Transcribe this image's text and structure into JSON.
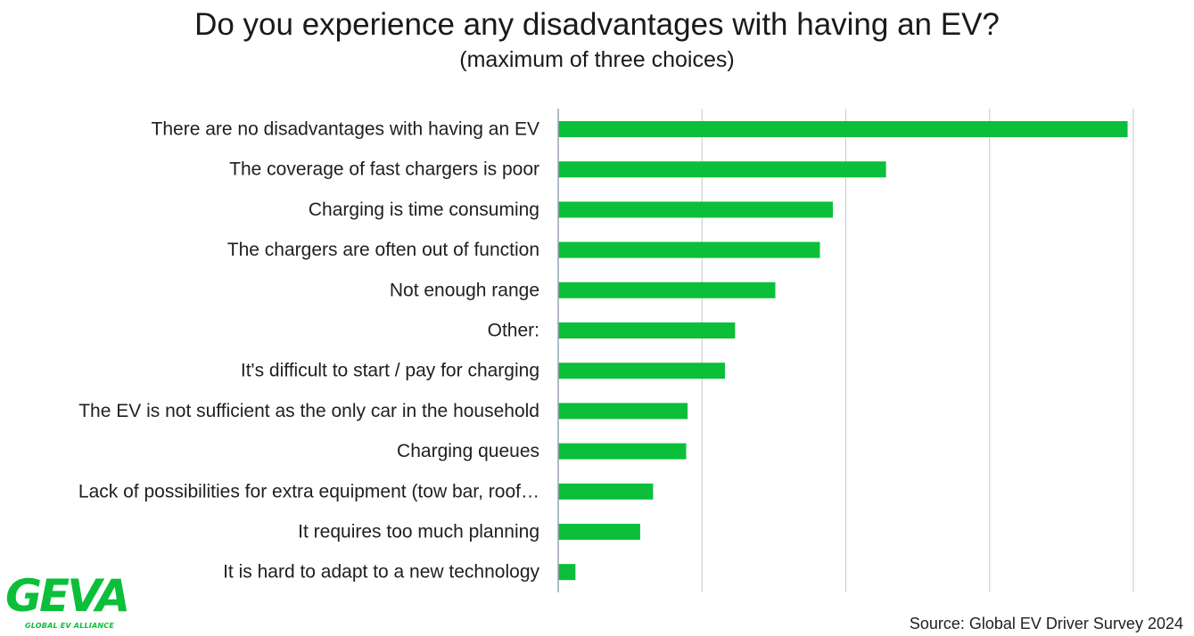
{
  "header": {
    "title": "Do you experience any disadvantages with having an EV?",
    "subtitle": "(maximum of three choices)"
  },
  "footer": {
    "source": "Source: Global EV Driver Survey 2024"
  },
  "logo": {
    "wordmark": "GEVA",
    "tagline": "GLOBAL EV ALLIANCE",
    "color": "#0bbf3a"
  },
  "chart_data": {
    "type": "bar",
    "orientation": "horizontal",
    "categories": [
      "There are no disadvantages with having an EV",
      "The coverage of fast chargers is poor",
      "Charging is time consuming",
      "The chargers are often out of function",
      "Not enough range",
      "Other:",
      "It's difficult to start / pay for charging",
      "The EV is not sufficient as the only car in the household",
      "Charging queues",
      "Lack of possibilities for extra equipment (tow bar, roof…",
      "It requires too much planning",
      "It is hard to adapt to a new technology"
    ],
    "values": [
      39.6,
      22.8,
      19.1,
      18.2,
      15.1,
      12.3,
      11.6,
      9.0,
      8.9,
      6.6,
      5.7,
      1.2
    ],
    "xlim": [
      0,
      40
    ],
    "gridlines": [
      0,
      10,
      20,
      30,
      40
    ],
    "tick_labels_visible": false,
    "grid": true,
    "bar_color": "#0bbf3a",
    "legend": "none"
  }
}
